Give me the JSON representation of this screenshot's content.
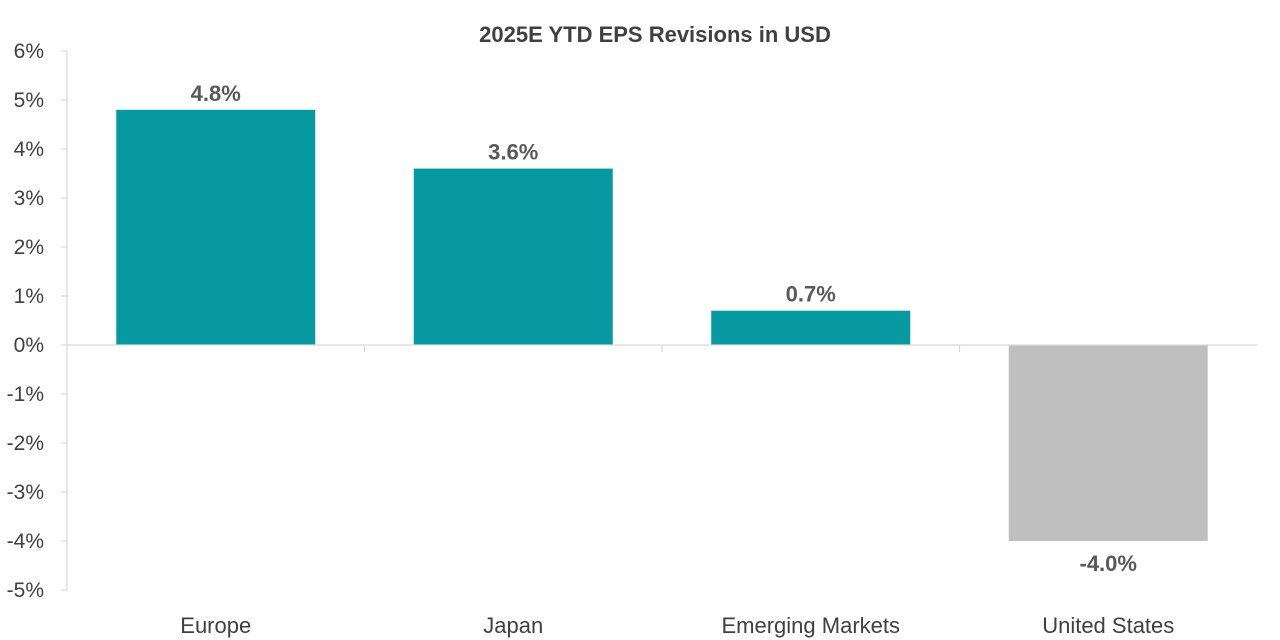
{
  "chart_data": {
    "type": "bar",
    "title": "2025E YTD EPS Revisions in USD",
    "xlabel": "",
    "ylabel": "",
    "categories": [
      "Europe",
      "Japan",
      "Emerging Markets",
      "United States"
    ],
    "values": [
      4.8,
      3.6,
      0.7,
      -4.0
    ],
    "data_labels": [
      "4.8%",
      "3.6%",
      "0.7%",
      "-4.0%"
    ],
    "ylim": [
      -5,
      6
    ],
    "yticks": [
      6,
      5,
      4,
      3,
      2,
      1,
      0,
      -1,
      -2,
      -3,
      -4,
      -5
    ],
    "ytick_labels": [
      "6%",
      "5%",
      "4%",
      "3%",
      "2%",
      "1%",
      "0%",
      "-1%",
      "-2%",
      "-3%",
      "-4%",
      "-5%"
    ],
    "grid": false,
    "legend": "none",
    "colors": {
      "positive": "#0699A0",
      "negative": "#BFBFBF",
      "axis": "#D9D9D9",
      "text": "#404040",
      "data_label": "#595959"
    }
  }
}
